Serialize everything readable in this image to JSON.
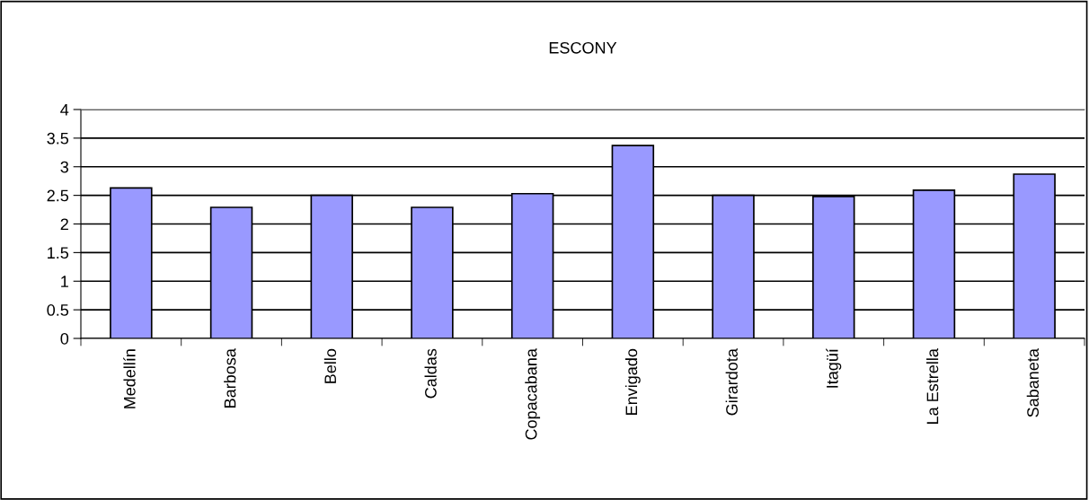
{
  "chart_data": {
    "type": "bar",
    "title": "ESCONY",
    "categories": [
      "Medellín",
      "Barbosa",
      "Bello",
      "Caldas",
      "Copacabana",
      "Envigado",
      "Girardota",
      "Itagüí",
      "La Estrella",
      "Sabaneta"
    ],
    "values": [
      2.63,
      2.29,
      2.5,
      2.29,
      2.53,
      3.37,
      2.5,
      2.48,
      2.59,
      2.87
    ],
    "color": "#9999ff",
    "ylim": [
      0,
      4
    ],
    "yticks": [
      0,
      0.5,
      1,
      1.5,
      2,
      2.5,
      3,
      3.5,
      4
    ],
    "grid": "y",
    "legend": false
  }
}
